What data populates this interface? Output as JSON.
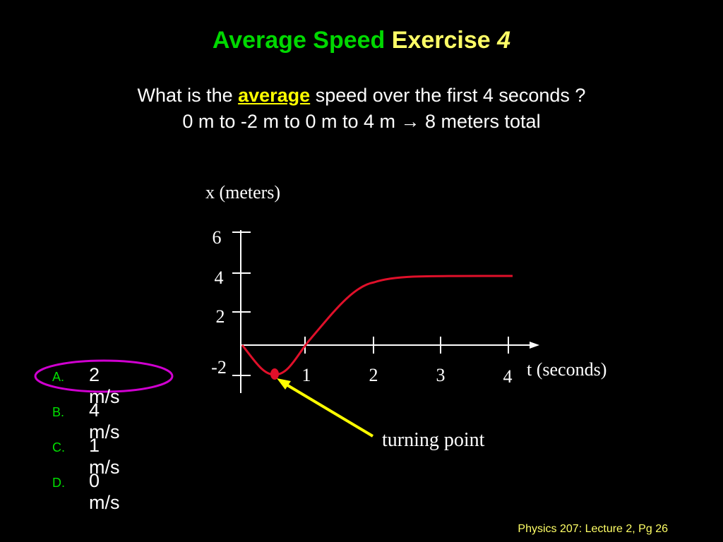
{
  "title": {
    "part1": "Average Speed ",
    "part2": "Exercise ",
    "part3": "4"
  },
  "question": {
    "line1_before": "What is the ",
    "line1_emphasis": "average",
    "line1_after": " speed over the first 4 seconds ?",
    "line2_start": "0 m to -2 m to 0 m to 4 m ",
    "arrow": "→",
    "line2_end": " 8 meters total"
  },
  "graph": {
    "y_label": "x (meters)",
    "x_label": "t (seconds)",
    "annotation": "turning point",
    "y_ticks": [
      "6",
      "4",
      "2",
      "-2"
    ],
    "x_ticks": [
      "1",
      "2",
      "3",
      "4"
    ],
    "curve_color": "#e0102a",
    "arrow_color": "#ffff00",
    "circle_color": "#d000d0"
  },
  "answers": [
    {
      "letter": "A.",
      "value": "2 m/s",
      "selected": true
    },
    {
      "letter": "B.",
      "value": "4 m/s"
    },
    {
      "letter": "C.",
      "value": "1 m/s"
    },
    {
      "letter": "D.",
      "value": "0 m/s"
    }
  ],
  "footer": "Physics 207: Lecture 2, Pg 26"
}
